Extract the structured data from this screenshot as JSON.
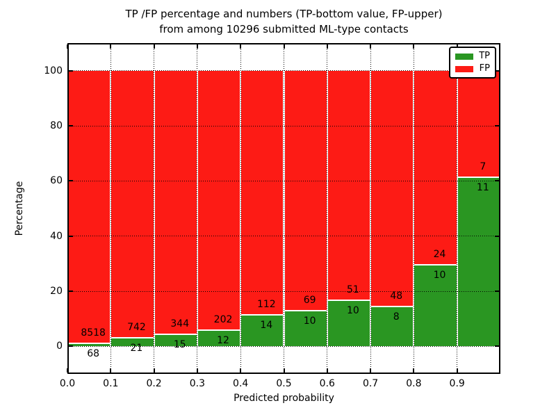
{
  "chart_data": {
    "type": "bar",
    "subtype": "stacked-100-percent",
    "title": "TP /FP percentage and numbers (TP-bottom value, FP-upper)\nfrom among 10296 submitted ML-type contacts",
    "title_lines": [
      "TP /FP percentage and numbers (TP-bottom value, FP-upper)",
      "from among 10296 submitted ML-type contacts"
    ],
    "total_submitted": 10296,
    "xlabel": "Predicted probability",
    "ylabel": "Percentage",
    "bins": [
      0.0,
      0.1,
      0.2,
      0.3,
      0.4,
      0.5,
      0.6,
      0.7,
      0.8,
      0.9
    ],
    "bin_width": 0.1,
    "series": [
      {
        "name": "TP",
        "color": "#2a9622",
        "counts": [
          68,
          21,
          15,
          12,
          14,
          10,
          10,
          8,
          10,
          11
        ]
      },
      {
        "name": "FP",
        "color": "#fd1b15",
        "counts": [
          8518,
          742,
          344,
          202,
          112,
          69,
          51,
          48,
          24,
          7
        ]
      }
    ],
    "xticks": [
      "0.0",
      "0.1",
      "0.2",
      "0.3",
      "0.4",
      "0.5",
      "0.6",
      "0.7",
      "0.8",
      "0.9"
    ],
    "yticks": [
      0,
      20,
      40,
      60,
      80,
      100
    ],
    "xlim": [
      0.0,
      1.0
    ],
    "ylim": [
      -10,
      110
    ],
    "grid": "dotted",
    "legend": {
      "position": "upper right",
      "entries": [
        "TP",
        "FP"
      ]
    }
  }
}
